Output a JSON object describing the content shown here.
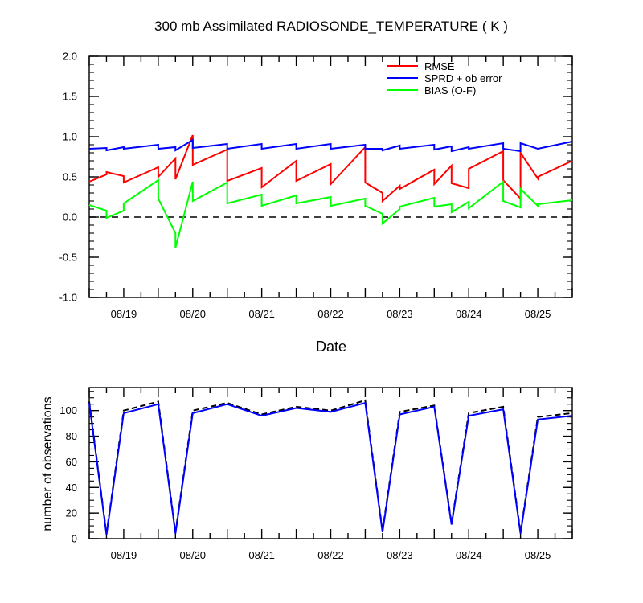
{
  "chart_data": [
    {
      "type": "line",
      "title": "300 mb Assimilated RADIOSONDE_TEMPERATURE ( K )",
      "xlabel": "Date",
      "ylabel": "",
      "xlim": [
        "2011-08-18 12:00",
        "2011-08-25 12:00"
      ],
      "ylim": [
        -1.0,
        2.0
      ],
      "yticks": [
        -1.0,
        -0.5,
        0.0,
        0.5,
        1.0,
        1.5,
        2.0
      ],
      "ytick_labels": [
        "-1.0",
        "-0.5",
        "0.0",
        "0.5",
        "1.0",
        "1.5",
        "2.0"
      ],
      "xtick_labels": [
        "08/19",
        "08/20",
        "08/21",
        "08/22",
        "08/23",
        "08/24",
        "08/25"
      ],
      "xtick_dates": [
        "2011-08-19 00:00",
        "2011-08-20 00:00",
        "2011-08-21 00:00",
        "2011-08-22 00:00",
        "2011-08-23 00:00",
        "2011-08-24 00:00",
        "2011-08-25 00:00"
      ],
      "zero_line": "dashed",
      "grid": false,
      "legend_position": "top-right",
      "x": [
        "2011-08-18 12:00",
        "2011-08-18 18:00",
        "2011-08-18 18:00",
        "2011-08-19 00:00",
        "2011-08-19 00:00",
        "2011-08-19 12:00",
        "2011-08-19 12:00",
        "2011-08-19 18:00",
        "2011-08-19 18:00",
        "2011-08-20 00:00",
        "2011-08-20 00:00",
        "2011-08-20 12:00",
        "2011-08-20 12:00",
        "2011-08-21 00:00",
        "2011-08-21 00:00",
        "2011-08-21 12:00",
        "2011-08-21 12:00",
        "2011-08-22 00:00",
        "2011-08-22 00:00",
        "2011-08-22 12:00",
        "2011-08-22 12:00",
        "2011-08-22 18:00",
        "2011-08-22 18:00",
        "2011-08-23 00:00",
        "2011-08-23 00:00",
        "2011-08-23 12:00",
        "2011-08-23 12:00",
        "2011-08-23 18:00",
        "2011-08-23 18:00",
        "2011-08-24 00:00",
        "2011-08-24 00:00",
        "2011-08-24 12:00",
        "2011-08-24 12:00",
        "2011-08-24 18:00",
        "2011-08-24 18:00",
        "2011-08-25 00:00",
        "2011-08-25 00:00",
        "2011-08-25 12:00"
      ],
      "series": [
        {
          "name": "RMSE",
          "color": "#ff0000",
          "values": [
            0.44,
            0.53,
            0.56,
            0.51,
            0.43,
            0.62,
            0.5,
            0.73,
            0.47,
            1.02,
            0.65,
            0.84,
            0.45,
            0.61,
            0.37,
            0.7,
            0.45,
            0.66,
            0.41,
            0.87,
            0.43,
            0.3,
            0.2,
            0.39,
            0.35,
            0.59,
            0.41,
            0.64,
            0.42,
            0.36,
            0.6,
            0.82,
            0.46,
            0.23,
            0.8,
            0.48,
            0.5,
            0.7
          ]
        },
        {
          "name": "SPRD + ob error",
          "color": "#0000ff",
          "values": [
            0.85,
            0.86,
            0.83,
            0.87,
            0.85,
            0.9,
            0.85,
            0.87,
            0.83,
            0.96,
            0.86,
            0.91,
            0.85,
            0.91,
            0.85,
            0.91,
            0.85,
            0.91,
            0.85,
            0.9,
            0.85,
            0.85,
            0.83,
            0.89,
            0.85,
            0.9,
            0.84,
            0.88,
            0.82,
            0.87,
            0.85,
            0.92,
            0.85,
            0.82,
            0.92,
            0.85,
            0.85,
            0.94
          ]
        },
        {
          "name": "BIAS (O-F)",
          "color": "#00ff00",
          "values": [
            0.15,
            0.08,
            -0.01,
            0.08,
            0.17,
            0.46,
            0.23,
            -0.2,
            -0.38,
            0.44,
            0.2,
            0.43,
            0.17,
            0.28,
            0.14,
            0.27,
            0.17,
            0.25,
            0.14,
            0.23,
            0.14,
            0.04,
            -0.08,
            0.1,
            0.13,
            0.24,
            0.13,
            0.16,
            0.06,
            0.19,
            0.11,
            0.44,
            0.2,
            0.12,
            0.35,
            0.14,
            0.16,
            0.21
          ]
        }
      ]
    },
    {
      "type": "line",
      "title": "",
      "xlabel": "",
      "ylabel": "number of observations",
      "xlim": [
        "2011-08-18 12:00",
        "2011-08-25 12:00"
      ],
      "ylim": [
        0,
        118
      ],
      "yticks": [
        0,
        20,
        40,
        60,
        80,
        100
      ],
      "ytick_labels": [
        "0",
        "20",
        "40",
        "60",
        "80",
        "100"
      ],
      "xtick_labels": [
        "08/19",
        "08/20",
        "08/21",
        "08/22",
        "08/23",
        "08/24",
        "08/25"
      ],
      "x": [
        "2011-08-18 12:00",
        "2011-08-18 18:00",
        "2011-08-19 00:00",
        "2011-08-19 12:00",
        "2011-08-19 18:00",
        "2011-08-20 00:00",
        "2011-08-20 12:00",
        "2011-08-21 00:00",
        "2011-08-21 12:00",
        "2011-08-22 00:00",
        "2011-08-22 12:00",
        "2011-08-22 18:00",
        "2011-08-23 00:00",
        "2011-08-23 12:00",
        "2011-08-23 18:00",
        "2011-08-24 00:00",
        "2011-08-24 12:00",
        "2011-08-24 18:00",
        "2011-08-25 00:00",
        "2011-08-25 12:00"
      ],
      "series": [
        {
          "style": "dashed",
          "color": "#000000",
          "values": [
            107,
            4,
            100,
            107,
            5,
            100,
            106,
            97,
            103,
            100,
            108,
            6,
            99,
            104,
            12,
            98,
            103,
            5,
            95,
            98
          ]
        },
        {
          "style": "solid",
          "color": "#0000ff",
          "values": [
            106,
            3,
            98,
            105,
            4,
            98,
            105,
            96,
            102,
            99,
            106,
            5,
            97,
            103,
            11,
            96,
            101,
            4,
            93,
            96
          ]
        }
      ]
    }
  ]
}
